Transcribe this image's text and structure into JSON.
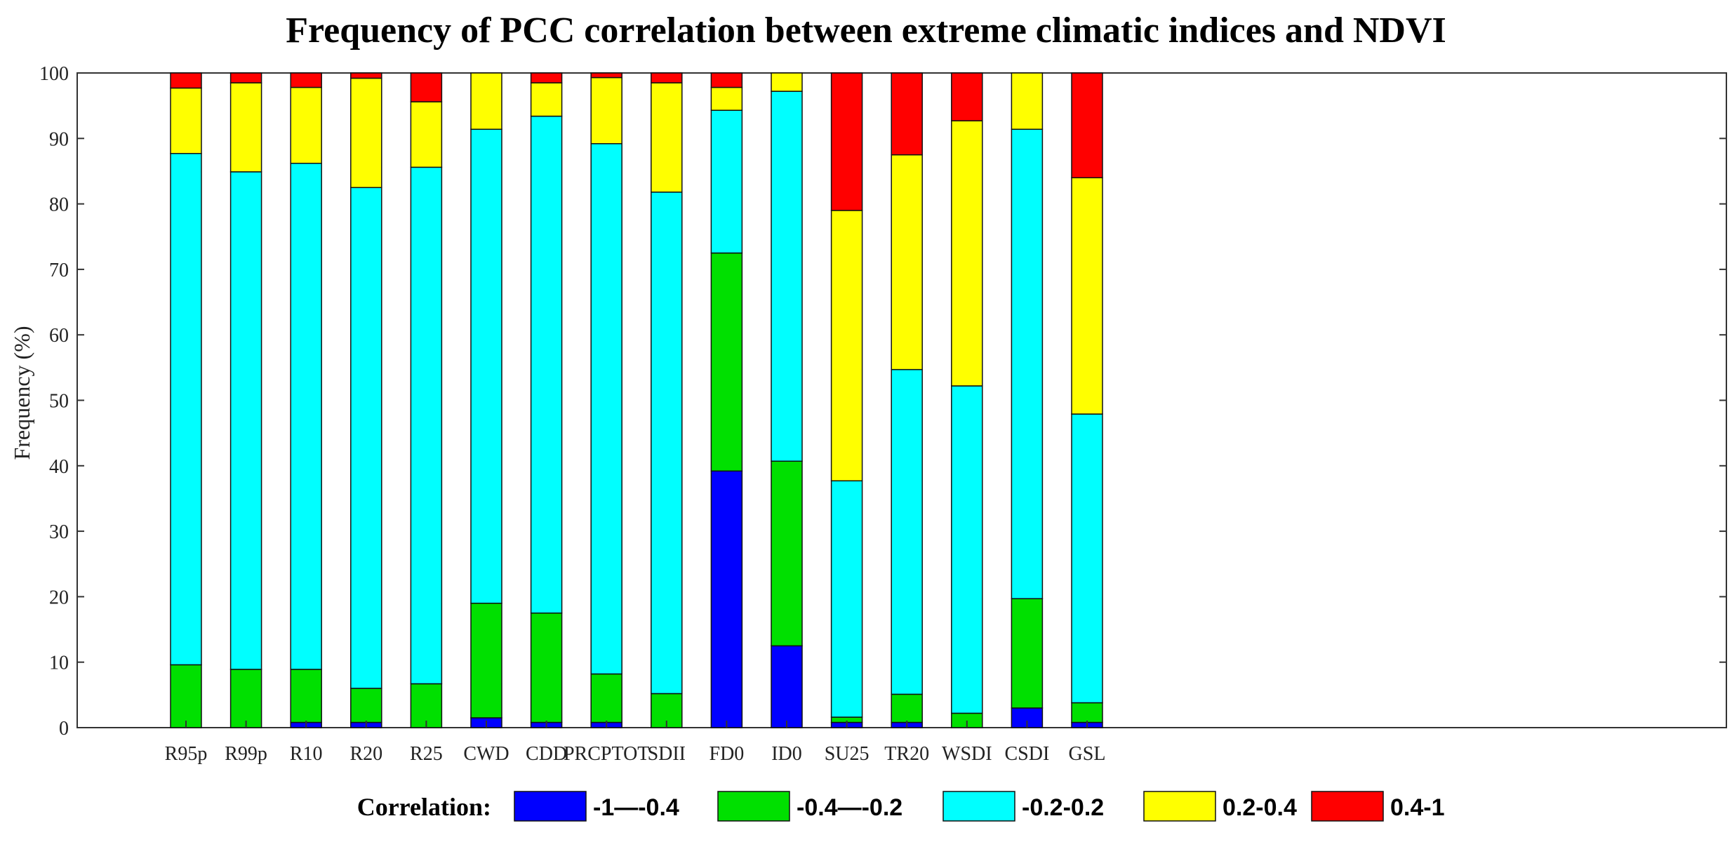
{
  "chart_data": {
    "type": "bar",
    "stacked": true,
    "title": "Frequency of PCC correlation between extreme climatic indices and NDVI",
    "xlabel": "",
    "ylabel": "Frequency (%)",
    "ylim": [
      0,
      100
    ],
    "yticks": [
      "0",
      "10",
      "20",
      "30",
      "40",
      "50",
      "60",
      "70",
      "80",
      "90",
      "100"
    ],
    "categories": [
      "R95p",
      "R99p",
      "R10",
      "R20",
      "R25",
      "CWD",
      "CDD",
      "PRCPTOT",
      "SDII",
      "FD0",
      "ID0",
      "SU25",
      "TR20",
      "WSDI",
      "CSDI",
      "GSL"
    ],
    "legend_title": "Correlation:",
    "legend_position": "bottom",
    "series": [
      {
        "name": "-1—-0.4",
        "color": "#0000ff",
        "values": [
          0,
          0,
          0.8,
          0.8,
          0,
          1.5,
          0.8,
          0.8,
          0,
          39.2,
          12.5,
          0.8,
          0.8,
          0,
          3.0,
          0.8
        ]
      },
      {
        "name": "-0.4—-0.2",
        "color": "#00e000",
        "values": [
          9.6,
          8.9,
          8.1,
          5.2,
          6.7,
          17.5,
          16.7,
          7.4,
          5.2,
          33.3,
          28.2,
          0.8,
          4.3,
          2.2,
          16.7,
          3.0
        ]
      },
      {
        "name": "-0.2-0.2",
        "color": "#00ffff",
        "values": [
          78.1,
          76.0,
          77.3,
          76.5,
          78.9,
          72.4,
          75.9,
          81.0,
          76.6,
          21.8,
          56.5,
          36.1,
          49.6,
          50.0,
          71.7,
          44.1
        ]
      },
      {
        "name": "0.2-0.4",
        "color": "#ffff00",
        "values": [
          10.0,
          13.6,
          11.6,
          16.7,
          10.0,
          8.6,
          5.1,
          10.1,
          16.7,
          3.5,
          2.8,
          41.3,
          32.8,
          40.5,
          8.6,
          36.1
        ]
      },
      {
        "name": "0.4-1",
        "color": "#ff0000",
        "values": [
          2.3,
          1.5,
          2.2,
          0.8,
          4.4,
          0,
          1.5,
          0.7,
          1.5,
          2.2,
          0,
          21.0,
          12.5,
          7.3,
          0,
          16.0
        ]
      }
    ]
  }
}
